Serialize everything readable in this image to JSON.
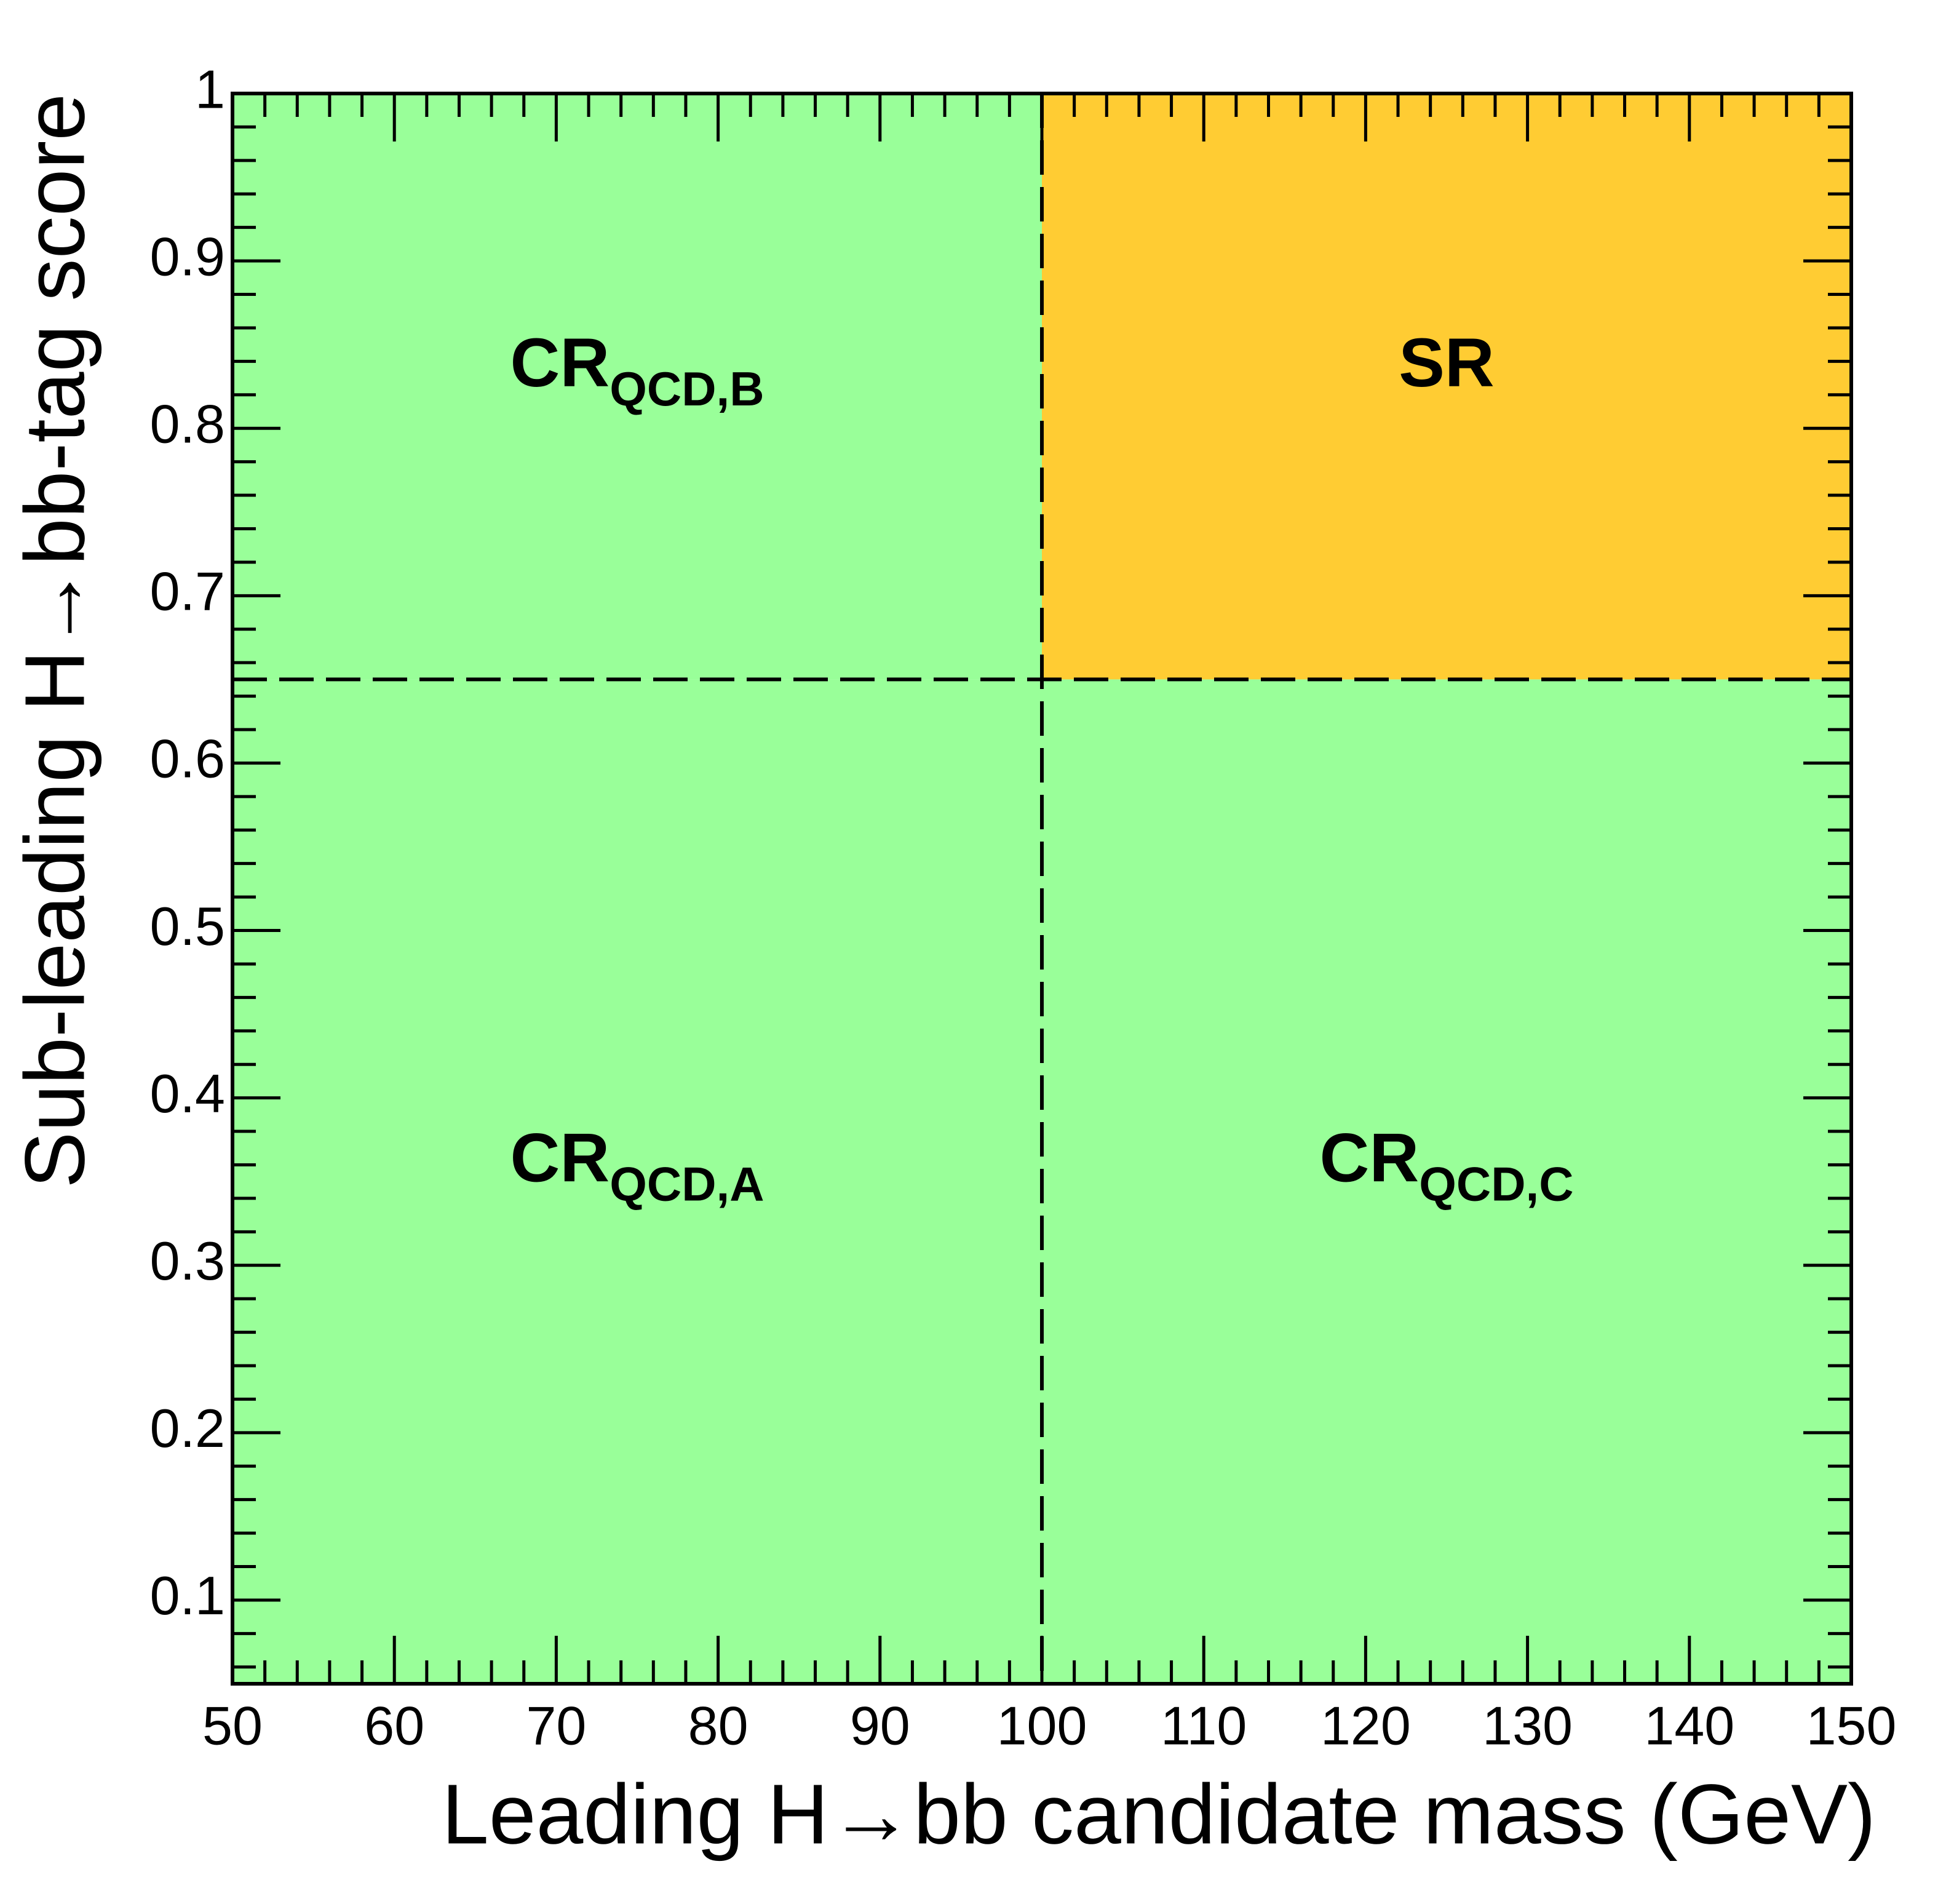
{
  "chart_data": {
    "type": "regions",
    "x_label": "Leading H→bb candidate mass (GeV)",
    "y_label": "Sub-leading H→bb-tag score",
    "xlim": [
      50,
      150
    ],
    "xticks": [
      50,
      60,
      70,
      80,
      90,
      100,
      110,
      120,
      130,
      140,
      150
    ],
    "ylim": [
      0.05,
      1
    ],
    "yticks": [
      0.1,
      0.2,
      0.3,
      0.4,
      0.5,
      0.6,
      0.7,
      0.8,
      0.9,
      1
    ],
    "cuts": {
      "x": 100,
      "y": 0.65
    },
    "regions": [
      {
        "label": "CR",
        "subscript": "QCD,A",
        "color": "#99ff99",
        "xrange": [
          50,
          100
        ],
        "yrange": [
          0.05,
          0.65
        ]
      },
      {
        "label": "CR",
        "subscript": "QCD,B",
        "color": "#99ff99",
        "xrange": [
          50,
          100
        ],
        "yrange": [
          0.65,
          1
        ]
      },
      {
        "label": "CR",
        "subscript": "QCD,C",
        "color": "#99ff99",
        "xrange": [
          100,
          150
        ],
        "yrange": [
          0.05,
          0.65
        ]
      },
      {
        "label": "SR",
        "color": "#ffcc33",
        "xrange": [
          100,
          150
        ],
        "yrange": [
          0.65,
          1
        ]
      }
    ]
  }
}
